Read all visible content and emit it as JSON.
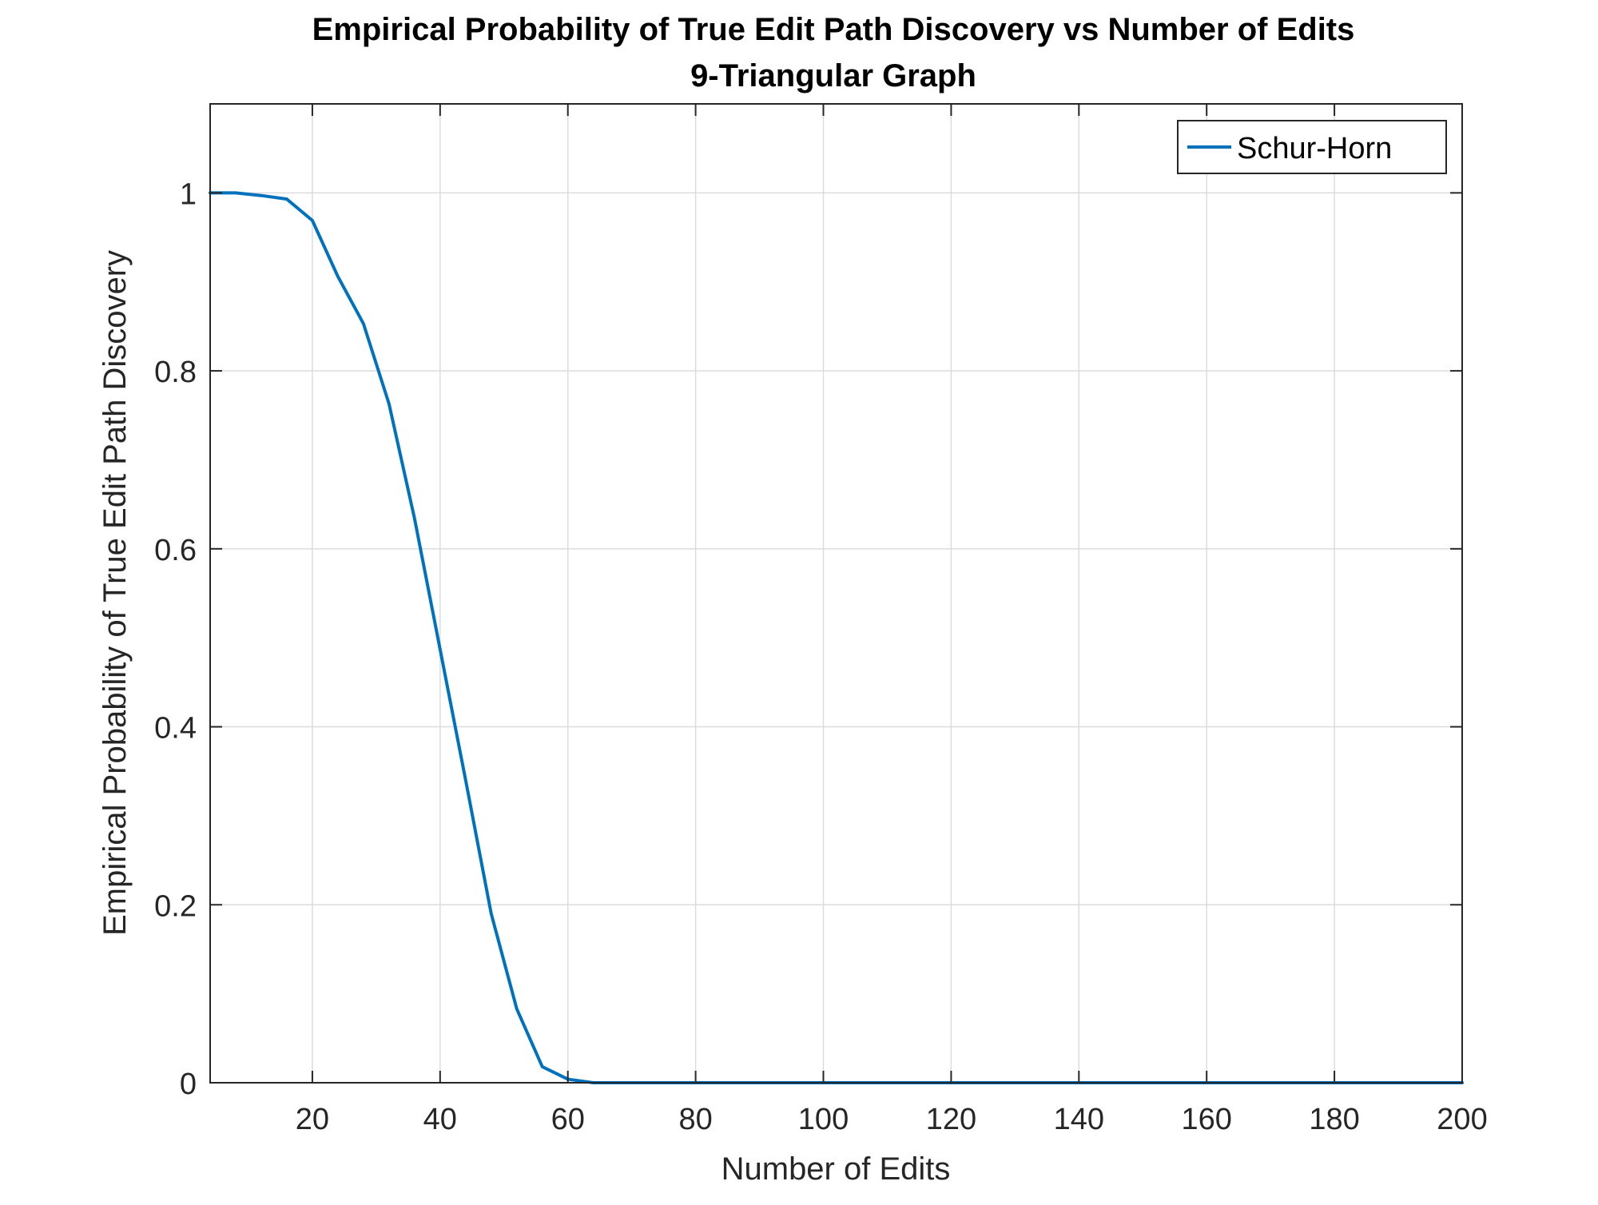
{
  "chart_data": {
    "type": "line",
    "title": "Empirical Probability of True Edit Path Discovery vs Number of Edits",
    "subtitle": "9-Triangular Graph",
    "xlabel": "Number of Edits",
    "ylabel": "Empirical Probability of True Edit Path Discovery",
    "xlim": [
      4,
      200
    ],
    "ylim": [
      0,
      1.1
    ],
    "xticks": [
      20,
      40,
      60,
      80,
      100,
      120,
      140,
      160,
      180,
      200
    ],
    "xtick_labels": [
      "20",
      "40",
      "60",
      "80",
      "100",
      "120",
      "140",
      "160",
      "180",
      "200"
    ],
    "yticks": [
      0,
      0.2,
      0.4,
      0.6,
      0.8,
      1
    ],
    "ytick_labels": [
      "0",
      "0.2",
      "0.4",
      "0.6",
      "0.8",
      "1"
    ],
    "grid": true,
    "legend_position": "top-right",
    "series": [
      {
        "name": "Schur-Horn",
        "color": "#0072BD",
        "x": [
          4,
          8,
          12,
          16,
          20,
          24,
          28,
          32,
          36,
          40,
          44,
          48,
          52,
          56,
          60,
          64,
          68,
          72,
          76,
          80,
          84,
          88,
          92,
          96,
          100,
          104,
          108,
          112,
          116,
          120,
          124,
          128,
          132,
          136,
          140,
          144,
          148,
          152,
          156,
          160,
          164,
          168,
          172,
          176,
          180,
          184,
          188,
          192,
          196,
          200
        ],
        "y": [
          1.0,
          1.0,
          0.997,
          0.993,
          0.969,
          0.906,
          0.853,
          0.763,
          0.634,
          0.487,
          0.34,
          0.19,
          0.083,
          0.018,
          0.004,
          0.0,
          0.0,
          0.0,
          0.0,
          0.0,
          0.0,
          0.0,
          0.0,
          0.0,
          0.0,
          0.0,
          0.0,
          0.0,
          0.0,
          0.0,
          0.0,
          0.0,
          0.0,
          0.0,
          0.0,
          0.0,
          0.0,
          0.0,
          0.0,
          0.0,
          0.0,
          0.0,
          0.0,
          0.0,
          0.0,
          0.0,
          0.0,
          0.0,
          0.0,
          0.0
        ]
      }
    ]
  }
}
